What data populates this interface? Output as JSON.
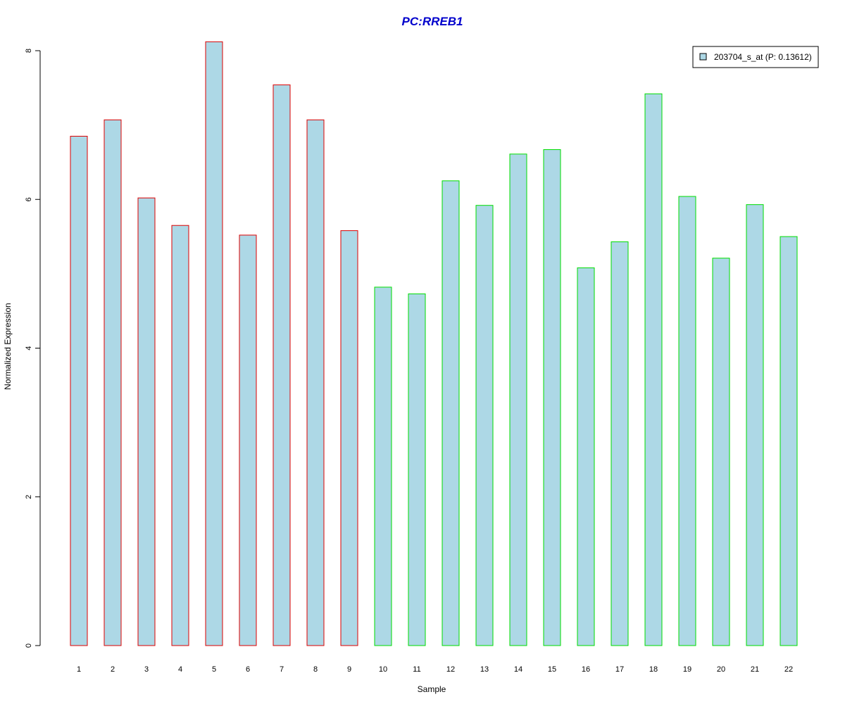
{
  "chart_data": {
    "type": "bar",
    "title": "PC:RREB1",
    "xlabel": "Sample",
    "ylabel": "Normalized Expression",
    "ylim": [
      0,
      8
    ],
    "yticks": [
      0,
      2,
      4,
      6,
      8
    ],
    "grid": false,
    "legend_position": "top-right",
    "categories": [
      "1",
      "2",
      "3",
      "4",
      "5",
      "6",
      "7",
      "8",
      "9",
      "10",
      "11",
      "12",
      "13",
      "14",
      "15",
      "16",
      "17",
      "18",
      "19",
      "20",
      "21",
      "22"
    ],
    "series": [
      {
        "name": "203704_s_at (P: 0.13612)",
        "values": [
          6.85,
          7.07,
          6.02,
          5.65,
          8.12,
          5.52,
          7.54,
          7.07,
          5.58,
          4.82,
          4.73,
          6.25,
          5.92,
          6.61,
          6.67,
          5.08,
          5.43,
          7.42,
          6.04,
          5.21,
          5.93,
          5.5
        ],
        "groups": [
          "red",
          "red",
          "red",
          "red",
          "red",
          "red",
          "red",
          "red",
          "red",
          "green",
          "green",
          "green",
          "green",
          "green",
          "green",
          "green",
          "green",
          "green",
          "green",
          "green",
          "green",
          "green"
        ]
      }
    ],
    "colors": {
      "title": "#0000CC",
      "bar_fill": "#ADD8E6",
      "border_red": "#DD0000",
      "border_green": "#00DD00",
      "axis": "#000000"
    }
  }
}
